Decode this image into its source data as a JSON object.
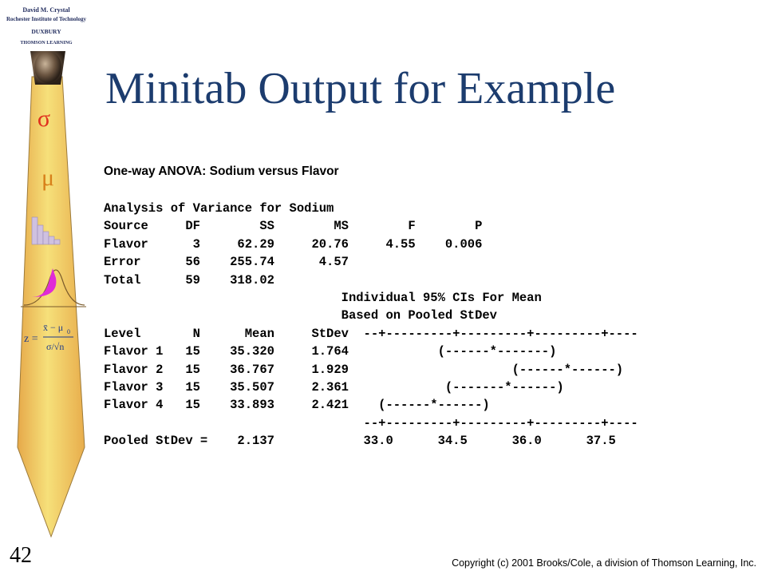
{
  "logo": {
    "author": "David M. Crystal",
    "institution": "Rochester Institute of Technology",
    "publisher": "DUXBURY",
    "parent": "THOMSON LEARNING"
  },
  "decor": {
    "sigma": "σ",
    "mu": "μ",
    "formula_z": "z =",
    "formula_top": "x̄ − μ",
    "formula_sub": "0",
    "formula_bottom": "σ/√n"
  },
  "title": "Minitab Output for Example",
  "subheading": "One-way ANOVA: Sodium versus Flavor",
  "output_lines": [
    "Analysis of Variance for Sodium",
    "Source     DF        SS        MS        F        P",
    "Flavor      3     62.29     20.76     4.55    0.006",
    "Error      56    255.74      4.57",
    "Total      59    318.02",
    "                                Individual 95% CIs For Mean",
    "                                Based on Pooled StDev",
    "Level       N      Mean     StDev  --+---------+---------+---------+----",
    "Flavor 1   15    35.320     1.764            (------*-------)",
    "Flavor 2   15    36.767     1.929                      (------*------)",
    "Flavor 3   15    35.507     2.361             (-------*------)",
    "Flavor 4   15    33.893     2.421    (------*------)",
    "                                   --+---------+---------+---------+----",
    "Pooled StDev =    2.137            33.0      34.5      36.0      37.5"
  ],
  "slide_number": "42",
  "copyright": "Copyright (c) 2001 Brooks/Cole, a division of Thomson Learning, Inc."
}
